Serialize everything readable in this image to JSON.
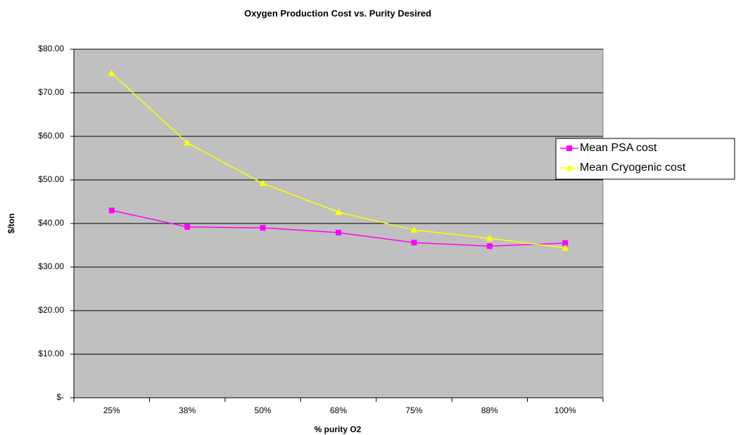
{
  "chart_data": {
    "type": "line",
    "title": "Oxygen Production Cost vs. Purity Desired",
    "x_label": "% purity O2",
    "y_label": "$/ton",
    "categories": [
      "25%",
      "38%",
      "50%",
      "68%",
      "75%",
      "88%",
      "100%"
    ],
    "series": [
      {
        "name": "Mean PSA cost",
        "color": "#ff00ff",
        "marker": "square",
        "values": [
          43.0,
          39.2,
          39.0,
          37.9,
          35.6,
          34.8,
          35.5
        ]
      },
      {
        "name": "Mean Cryogenic cost",
        "color": "#ffff00",
        "marker": "triangle",
        "values": [
          74.5,
          58.5,
          49.2,
          42.6,
          38.5,
          36.6,
          34.4
        ]
      }
    ],
    "ylim": [
      0,
      80
    ],
    "yticks": [
      {
        "value": 0,
        "label": "$-"
      },
      {
        "value": 10,
        "label": "$10.00"
      },
      {
        "value": 20,
        "label": "$20.00"
      },
      {
        "value": 30,
        "label": "$30.00"
      },
      {
        "value": 40,
        "label": "$40.00"
      },
      {
        "value": 50,
        "label": "$50.00"
      },
      {
        "value": 60,
        "label": "$60.00"
      },
      {
        "value": 70,
        "label": "$70.00"
      },
      {
        "value": 80,
        "label": "$80.00"
      }
    ],
    "grid": true,
    "plot_background": "#c0c0c0",
    "legend_position": "right"
  }
}
